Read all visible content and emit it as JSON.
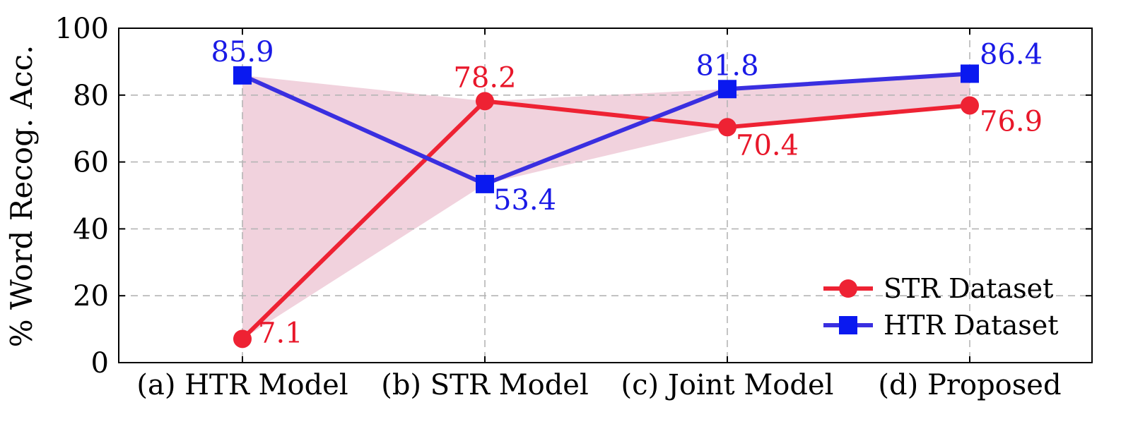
{
  "chart_data": {
    "type": "line",
    "categories": [
      "(a) HTR Model",
      "(b) STR Model",
      "(c) Joint Model",
      "(d) Proposed"
    ],
    "ylabel": "% Word Recog. Acc.",
    "xlabel": "",
    "ylim": [
      0,
      100
    ],
    "yticks": [
      0,
      20,
      40,
      60,
      80,
      100
    ],
    "grid": true,
    "legend_position": "bottom-right",
    "band_color": "#f1d2dd",
    "series": [
      {
        "name": "STR Dataset",
        "values": [
          7.1,
          78.2,
          70.4,
          76.9
        ],
        "labels": [
          "7.1",
          "78.2",
          "70.4",
          "76.9"
        ],
        "color": "#ee2233",
        "marker": "circle"
      },
      {
        "name": "HTR Dataset",
        "values": [
          85.9,
          53.4,
          81.8,
          86.4
        ],
        "labels": [
          "85.9",
          "53.4",
          "81.8",
          "86.4"
        ],
        "color": "#3a2fe0",
        "marker_color": "#0a19f0",
        "marker": "square"
      }
    ]
  }
}
